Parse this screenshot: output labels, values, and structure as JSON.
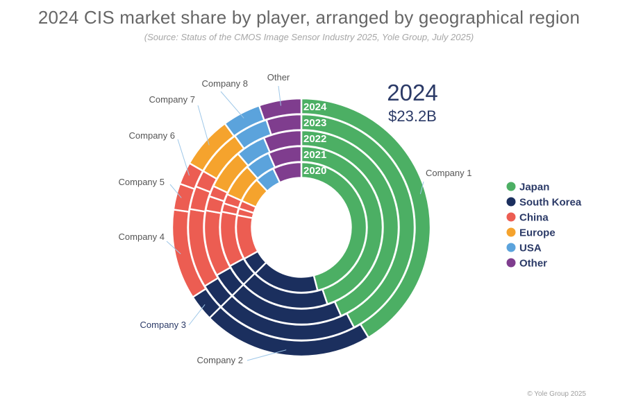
{
  "title": "2024 CIS market share by player, arranged by geographical region",
  "subtitle": "(Source: Status of the CMOS Image Sensor Industry 2025, Yole Group, July 2025)",
  "footer": "© Yole Group 2025",
  "colors": {
    "Japan": "#4caf64",
    "South Korea": "#1b2f5e",
    "China": "#ec5d52",
    "Europe": "#f5a32d",
    "USA": "#5ba3dc",
    "Other": "#7f3d8e"
  },
  "chart_data": {
    "type": "donut",
    "center_year": "2024",
    "center_value": "$23.2B",
    "legend": [
      "Japan",
      "South Korea",
      "China",
      "Europe",
      "USA",
      "Other"
    ],
    "legend_position": "right",
    "players": [
      "Company 1",
      "Company 2",
      "Company 3",
      "Company 4",
      "Company 5",
      "Company 6",
      "Company 7",
      "Company 8",
      "Other"
    ],
    "player_region": [
      "Japan",
      "South Korea",
      "South Korea",
      "China",
      "China",
      "China",
      "Europe",
      "USA",
      "Other"
    ],
    "series": [
      {
        "name": "2024",
        "values": [
          41.3,
          21.3,
          3.3,
          11.3,
          3.3,
          2.8,
          6.6,
          4.8,
          5.3
        ]
      },
      {
        "name": "2023",
        "values": [
          42.3,
          20.3,
          3.7,
          11.3,
          3.3,
          2.4,
          6.7,
          5.0,
          5.0
        ]
      },
      {
        "name": "2022",
        "values": [
          43.3,
          19.3,
          4.2,
          11.0,
          2.4,
          1.8,
          6.7,
          5.0,
          6.3
        ]
      },
      {
        "name": "2021",
        "values": [
          44.8,
          17.8,
          4.5,
          11.0,
          1.7,
          1.9,
          6.7,
          5.0,
          6.6
        ]
      },
      {
        "name": "2020",
        "values": [
          46.0,
          16.5,
          4.5,
          11.0,
          1.7,
          2.0,
          6.3,
          4.9,
          7.1
        ]
      }
    ]
  }
}
